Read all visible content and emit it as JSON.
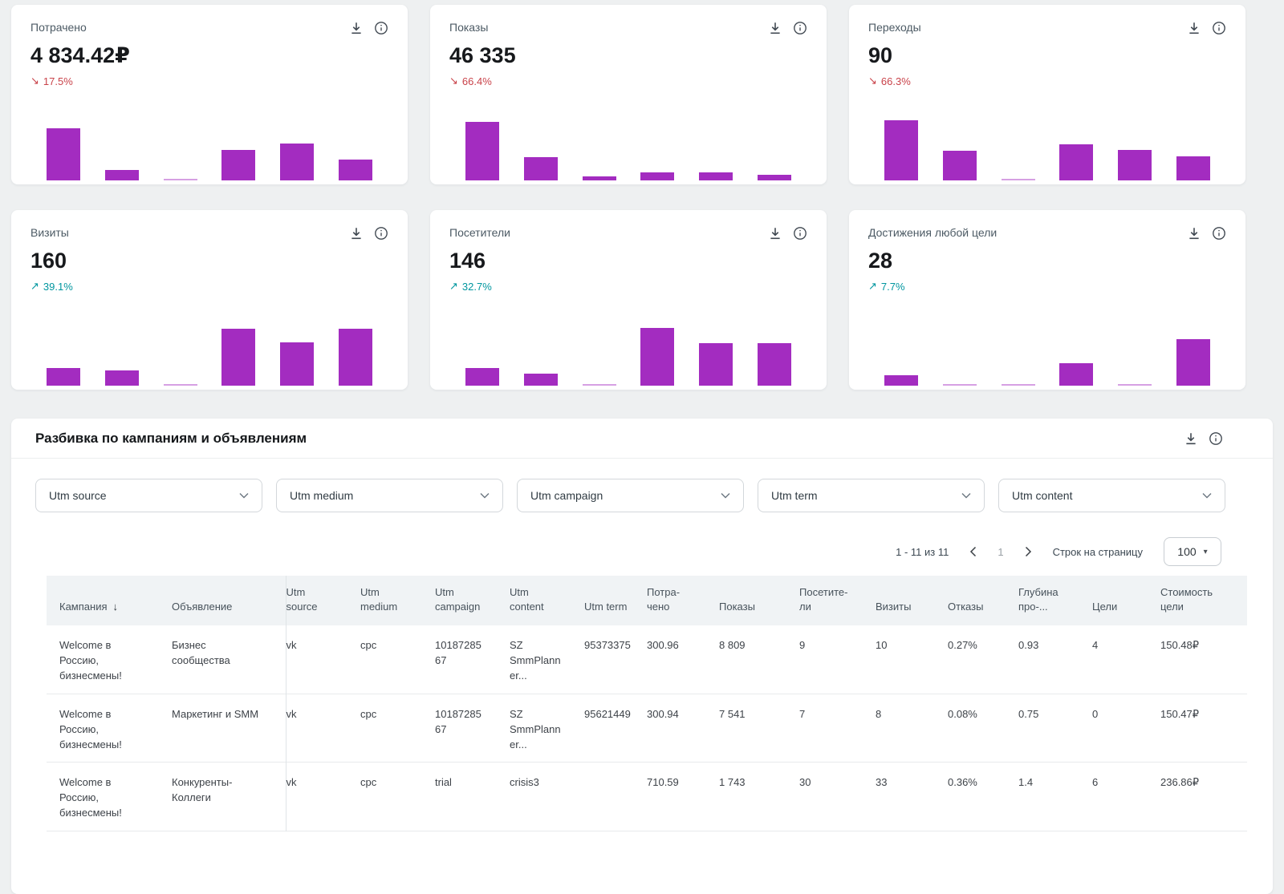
{
  "colors": {
    "accent_purple": "#a32cc0",
    "trend_down_red": "#c9434a",
    "trend_up_teal": "#00969f"
  },
  "cards": [
    {
      "title": "Потрачено",
      "value": "4 834.42₽",
      "trend_arrow": "↘",
      "trend": "17.5%",
      "direction": "down",
      "bars": [
        83,
        17,
        3,
        49,
        59,
        33
      ]
    },
    {
      "title": "Показы",
      "value": "46 335",
      "trend_arrow": "↘",
      "trend": "66.4%",
      "direction": "down",
      "bars": [
        94,
        37,
        6,
        13,
        13,
        9
      ]
    },
    {
      "title": "Переходы",
      "value": "90",
      "trend_arrow": "↘",
      "trend": "66.3%",
      "direction": "down",
      "bars": [
        96,
        47,
        3,
        58,
        49,
        38
      ]
    },
    {
      "title": "Визиты",
      "value": "160",
      "trend_arrow": "↗",
      "trend": "39.1%",
      "direction": "up",
      "bars": [
        28,
        24,
        3,
        91,
        69,
        91
      ]
    },
    {
      "title": "Посетители",
      "value": "146",
      "trend_arrow": "↗",
      "trend": "32.7%",
      "direction": "up",
      "bars": [
        28,
        19,
        3,
        92,
        68,
        68
      ]
    },
    {
      "title": "Достижения любой цели",
      "value": "28",
      "trend_arrow": "↗",
      "trend": "7.7%",
      "direction": "up",
      "bars": [
        17,
        3,
        3,
        36,
        3,
        74
      ]
    }
  ],
  "breakdown": {
    "title": "Разбивка по кампаниям и объявлениям",
    "filters": [
      "Utm source",
      "Utm medium",
      "Utm campaign",
      "Utm term",
      "Utm content"
    ],
    "pagination": {
      "range": "1 - 11 из 11",
      "page": "1",
      "rows_per_page_label": "Строк на страницу",
      "page_size": "100"
    },
    "table": {
      "headers": [
        "Кампания",
        "Объявление",
        "Utm source",
        "Utm medium",
        "Utm campaign",
        "Utm content",
        "Utm term",
        "По­тра­чено",
        "Пока­зы",
        "Посе­тите­ли",
        "Визи­ты",
        "Отка­зы",
        "Глу­бина про-...",
        "Цели",
        "Стои­мость цели"
      ],
      "rows": [
        [
          "Welcome в Россию, бизнесмены!",
          "Бизнес сообщества",
          "vk",
          "cpc",
          "1018728567",
          "SZ SmmPlanner...",
          "95373375",
          "300.96",
          "8 809",
          "9",
          "10",
          "0.27%",
          "0.93",
          "4",
          "150.48₽"
        ],
        [
          "Welcome в Россию, бизнесмены!",
          "Маркетинг и SMM",
          "vk",
          "cpc",
          "1018728567",
          "SZ SmmPlanner...",
          "95621449",
          "300.94",
          "7 541",
          "7",
          "8",
          "0.08%",
          "0.75",
          "0",
          "150.47₽"
        ],
        [
          "Welcome в Россию, бизнесмены!",
          "Конкуренты-Коллеги",
          "vk",
          "cpc",
          "trial",
          "crisis3",
          "",
          "710.59",
          "1 743",
          "30",
          "33",
          "0.36%",
          "1.4",
          "6",
          "236.86₽"
        ]
      ]
    }
  }
}
